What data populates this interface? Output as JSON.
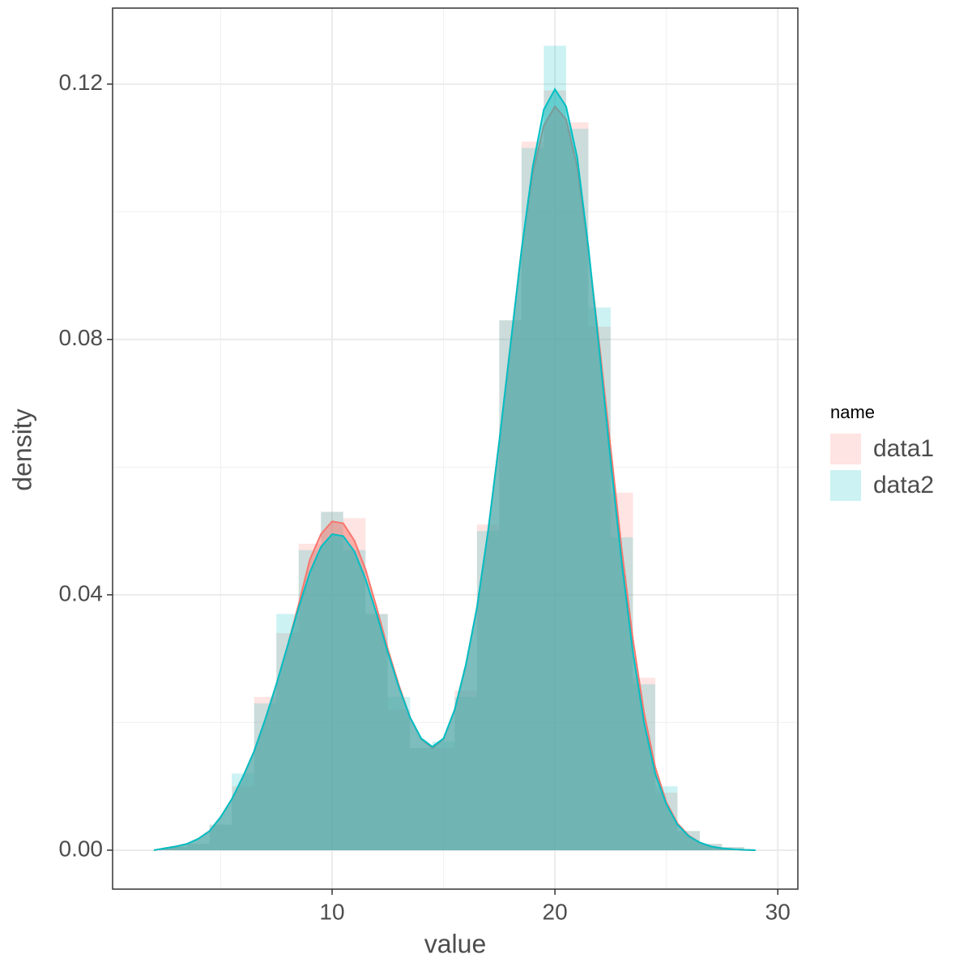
{
  "chart_data": {
    "type": "histogram",
    "x_label": "value",
    "y_label": "density",
    "legend_title": "name",
    "legend_position": "right",
    "grid": true,
    "xlim": [
      0.15,
      30.9
    ],
    "ylim": [
      -0.0061,
      0.1319
    ],
    "xticks": [
      10,
      20,
      30
    ],
    "yticks": [
      {
        "value": 0,
        "label": "0.00"
      },
      0.04,
      0.08,
      0.12
    ],
    "x_minor_grid": [
      5,
      15,
      25
    ],
    "y_minor_grid": [
      0.02,
      0.06,
      0.1
    ],
    "bins": [
      2.5,
      3.5,
      4.5,
      5.5,
      6.5,
      7.5,
      8.5,
      9.5,
      10.5,
      11.5,
      12.5,
      13.5,
      14.5,
      15.5,
      16.5,
      17.5,
      18.5,
      19.5,
      20.5,
      21.5,
      22.5,
      23.5,
      24.5,
      25.5,
      26.5,
      27.5,
      28.5
    ],
    "density_x": [
      2,
      2.5,
      3,
      3.5,
      4,
      4.5,
      5,
      5.5,
      6,
      6.5,
      7,
      7.5,
      8,
      8.5,
      9,
      9.5,
      10,
      10.5,
      11,
      11.5,
      12,
      12.5,
      13,
      13.5,
      14,
      14.5,
      15,
      15.5,
      16,
      16.5,
      17,
      17.5,
      18,
      18.5,
      19,
      19.5,
      20,
      20.5,
      21,
      21.5,
      22,
      22.5,
      23,
      23.5,
      24,
      24.5,
      25,
      25.5,
      26,
      26.5,
      27,
      27.5,
      28,
      28.5,
      29
    ],
    "series": [
      {
        "name": "data1",
        "color": "#F8766D",
        "values": [
          0.0005,
          0.001,
          0.004,
          0.01,
          0.024,
          0.034,
          0.048,
          0.053,
          0.052,
          0.037,
          0.022,
          0.016,
          0.016,
          0.025,
          0.051,
          0.083,
          0.111,
          0.119,
          0.114,
          0.082,
          0.056,
          0.027,
          0.009,
          0.003,
          0.001,
          0.0005
        ],
        "density": [
          0,
          0.0003,
          0.0006,
          0.001,
          0.0018,
          0.003,
          0.0052,
          0.008,
          0.0115,
          0.0155,
          0.0205,
          0.026,
          0.032,
          0.0385,
          0.0455,
          0.0495,
          0.0515,
          0.0512,
          0.0485,
          0.044,
          0.038,
          0.0315,
          0.0258,
          0.0208,
          0.0174,
          0.016,
          0.0174,
          0.022,
          0.029,
          0.038,
          0.05,
          0.064,
          0.079,
          0.094,
          0.106,
          0.1135,
          0.1165,
          0.1145,
          0.107,
          0.094,
          0.079,
          0.063,
          0.047,
          0.033,
          0.0215,
          0.013,
          0.0075,
          0.0042,
          0.0023,
          0.0012,
          0.0006,
          0.0003,
          0.00015,
          5e-05,
          0
        ]
      },
      {
        "name": "data2",
        "color": "#00BFC4",
        "values": [
          0.0005,
          0.001,
          0.004,
          0.012,
          0.023,
          0.037,
          0.047,
          0.053,
          0.047,
          0.037,
          0.024,
          0.016,
          0.017,
          0.024,
          0.05,
          0.083,
          0.11,
          0.126,
          0.113,
          0.085,
          0.049,
          0.026,
          0.01,
          0.003,
          0.001,
          0.0005
        ],
        "density": [
          0,
          0.0003,
          0.0006,
          0.001,
          0.0018,
          0.003,
          0.0052,
          0.008,
          0.0115,
          0.0155,
          0.0205,
          0.026,
          0.032,
          0.038,
          0.0435,
          0.0475,
          0.0495,
          0.0492,
          0.0468,
          0.0425,
          0.037,
          0.031,
          0.0255,
          0.0208,
          0.0175,
          0.0162,
          0.0175,
          0.022,
          0.029,
          0.038,
          0.05,
          0.064,
          0.079,
          0.094,
          0.107,
          0.116,
          0.1192,
          0.1165,
          0.1085,
          0.0945,
          0.078,
          0.061,
          0.045,
          0.031,
          0.02,
          0.012,
          0.0072,
          0.004,
          0.0022,
          0.0012,
          0.0006,
          0.0003,
          0.00015,
          5e-05,
          0
        ]
      }
    ]
  }
}
